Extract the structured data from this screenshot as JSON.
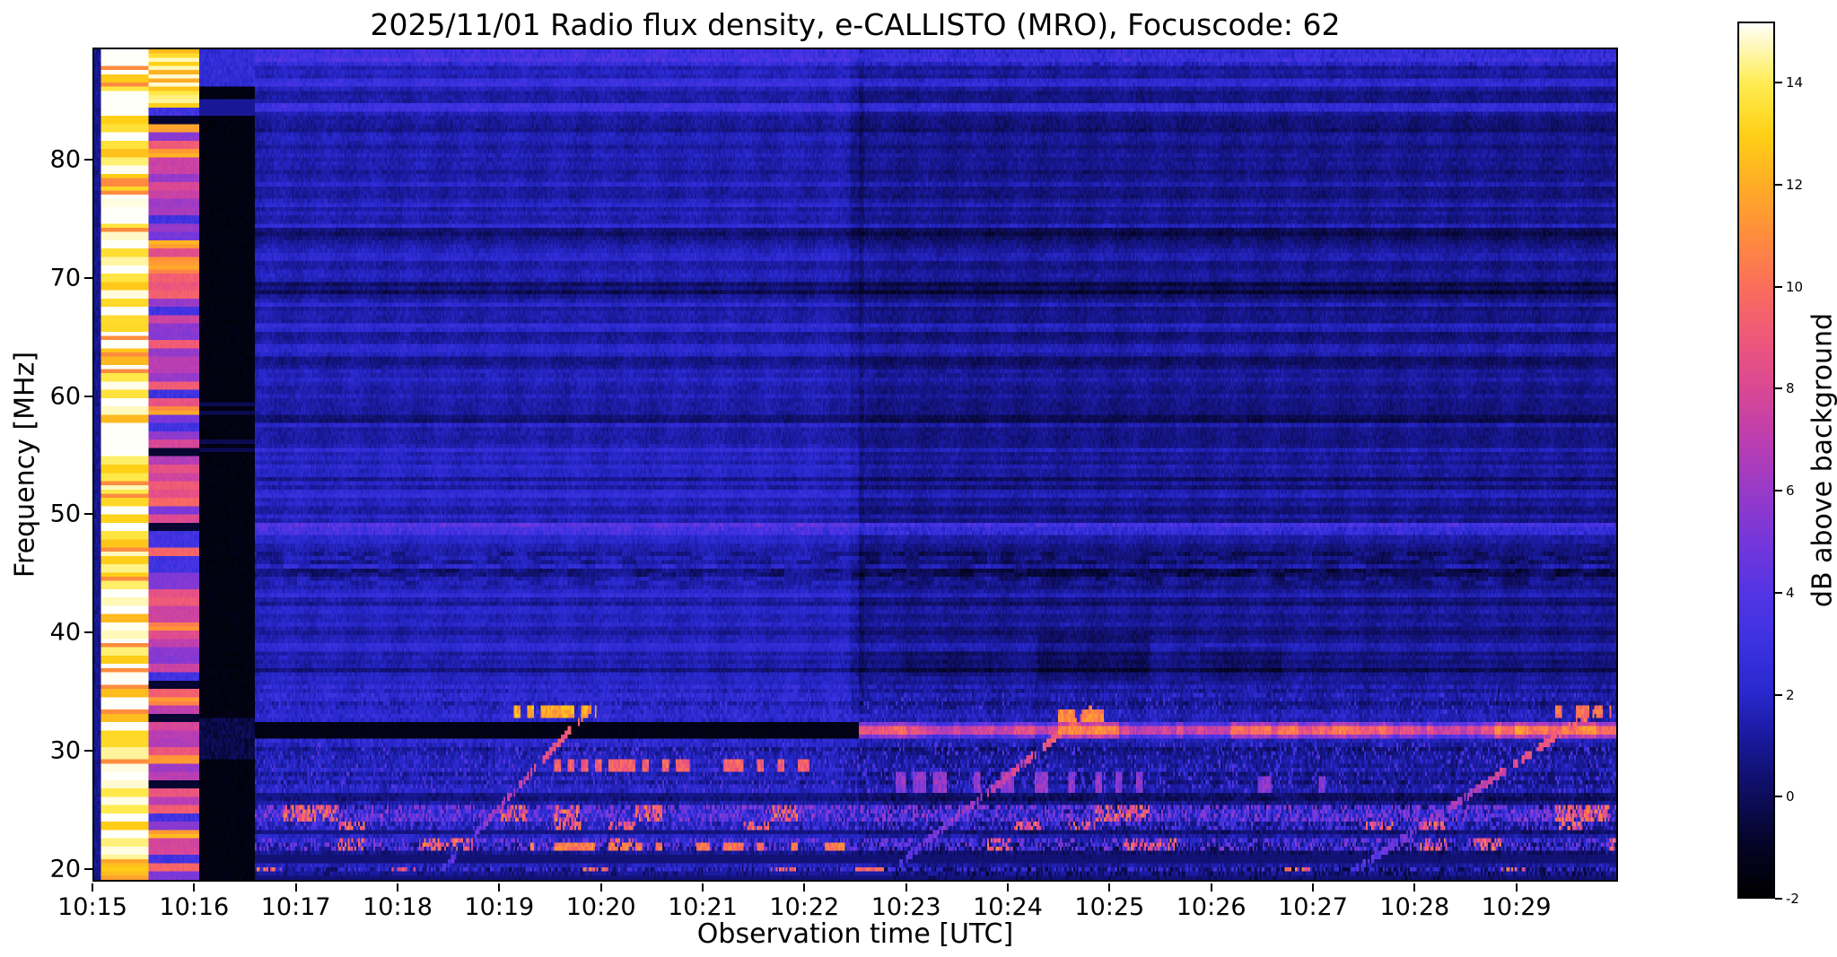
{
  "figure": {
    "background": "#ffffff"
  },
  "chart_data": {
    "type": "heatmap",
    "title": "2025/11/01  Radio flux density, e-CALLISTO (MRO), Focuscode: 62",
    "xlabel": "Observation time [UTC]",
    "ylabel": "Frequency [MHz]",
    "x_ticks": [
      "10:15",
      "10:16",
      "10:17",
      "10:18",
      "10:19",
      "10:20",
      "10:21",
      "10:22",
      "10:23",
      "10:24",
      "10:25",
      "10:26",
      "10:27",
      "10:28",
      "10:29"
    ],
    "x_range_minutes": [
      0,
      15
    ],
    "y_ticks": [
      20,
      30,
      40,
      50,
      60,
      70,
      80
    ],
    "y_range_mhz": [
      18.9,
      89.5
    ],
    "colorbar": {
      "label": "dB above background",
      "ticks": [
        -2,
        0,
        2,
        4,
        6,
        8,
        10,
        12,
        14
      ],
      "range": [
        -2,
        15.2
      ]
    },
    "grid": false,
    "legend": null,
    "description": "e-CALLISTO (MRO) dynamic radio spectrum 10:15-10:30 UTC, 19-89 MHz. Bright white/yellow calibration column at 10:15-10:15.5, pink column to 10:16, black column to 10:16.6. Dark blue striped background, step to darker background at ~10:22.6. Black horizontal band at ~31.5 MHz on left half becomes bright pink/orange line after 10:22.6. Strong RFI speckle bands at 18-25 MHz and 26-31 MHz. Three rising ionosonde-like drifting traces up to ~33.5 MHz near 10:19, 10:24 and 10:29. Brighter blue rows near 49 MHz and at the top edge (87-89 MHz).",
    "render": {
      "grid": {
        "nt": 900,
        "nf": 200
      },
      "step_time": 7.53,
      "base_left": 1.55,
      "base_right": 0.95,
      "bands": {
        "dark_edge_t": 0.07,
        "cal_t": [
          0.07,
          0.53
        ],
        "pink_t": [
          0.53,
          1.03
        ],
        "black_t": [
          1.03,
          1.58
        ]
      },
      "bright_rows": [
        {
          "f": [
            88.2,
            89.5
          ],
          "add": 1.4
        },
        {
          "f": [
            86.2,
            86.9
          ],
          "add": 0.7
        },
        {
          "f": [
            84.2,
            85.0
          ],
          "add": 0.8
        },
        {
          "f": [
            48.3,
            49.3
          ],
          "add": 1.6
        }
      ],
      "dark_rows": [
        82.9,
        74.0,
        69.5,
        68.7,
        63.2,
        58.2,
        53.0,
        44.9,
        36.9
      ],
      "rfi_line": {
        "f": [
          31.05,
          32.35
        ],
        "core": [
          31.3,
          32.05
        ],
        "blobs": [
          [
            7.53,
            8.2,
            1.5
          ],
          [
            9.5,
            10.1,
            3.0
          ],
          [
            11.2,
            12.8,
            1.8
          ],
          [
            13.8,
            15.0,
            2.6
          ]
        ]
      },
      "rfi_bands": [
        {
          "f": [
            23.9,
            25.4
          ],
          "density": 0.8,
          "amp": 5.2,
          "hot": true
        },
        {
          "f": [
            23.2,
            23.9
          ],
          "density": 0.5,
          "amp": 3.5,
          "hot": true
        },
        {
          "f": [
            21.2,
            22.6
          ],
          "density": 0.6,
          "amp": 4.5,
          "hot": true
        },
        {
          "f": [
            19.3,
            20.1
          ],
          "density": 0.5,
          "amp": 2.6,
          "hot": true
        },
        {
          "f": [
            18.9,
            19.6
          ],
          "density": 0.45,
          "amp": 2.4,
          "hot": false
        },
        {
          "f": [
            26.2,
            30.7
          ],
          "density": 0.2,
          "amp": 3.2,
          "hot": false
        },
        {
          "f": [
            33.0,
            34.9
          ],
          "density": 0.1,
          "amp": 2.6,
          "hot": false
        }
      ],
      "hot_segments": [
        {
          "t": [
            4.5,
            7.05
          ],
          "f": [
            28.2,
            29.2
          ],
          "gate": 0.45,
          "v": 8.2
        },
        {
          "t": [
            4.3,
            7.4
          ],
          "f": [
            21.3,
            22.2
          ],
          "gate": 0.5,
          "v": 9.2
        },
        {
          "t": [
            7.9,
            10.6
          ],
          "f": [
            26.3,
            28.2
          ],
          "gate": 0.68,
          "v": 4.5
        },
        {
          "t": [
            11.4,
            12.6
          ],
          "f": [
            26.3,
            27.6
          ],
          "gate": 0.7,
          "v": 4.2
        },
        {
          "t": [
            4.1,
            4.95
          ],
          "f": [
            32.8,
            33.9
          ],
          "gate": 0.4,
          "v": 10.8
        },
        {
          "t": [
            9.5,
            9.95
          ],
          "f": [
            32.4,
            33.5
          ],
          "gate": 0.45,
          "v": 9.6
        },
        {
          "t": [
            14.4,
            14.95
          ],
          "f": [
            32.6,
            33.6
          ],
          "gate": 0.5,
          "v": 9.0
        },
        {
          "t": [
            7.5,
            7.78
          ],
          "f": [
            18.9,
            20.0
          ],
          "gate": 0.35,
          "v": 8.5
        }
      ],
      "dark_blocks": [
        {
          "t": [
            9.3,
            10.4
          ],
          "f": [
            36.0,
            39.6
          ],
          "d": 0.6
        },
        {
          "t": [
            8.0,
            8.85
          ],
          "f": [
            36.2,
            38.2
          ],
          "d": 0.4
        },
        {
          "t": [
            10.9,
            11.7
          ],
          "f": [
            36.0,
            38.6
          ],
          "d": 0.45
        }
      ],
      "dark_gaps": [
        [
          20.15,
          21.1,
          0.45
        ],
        [
          22.65,
          23.15,
          0.7
        ],
        [
          25.45,
          26.15,
          0.9
        ]
      ],
      "sweeps": [
        {
          "t0": 3.35,
          "t1": 4.9,
          "f0": 19.0,
          "f1": 33.6
        },
        {
          "t0": 7.75,
          "t1": 9.85,
          "f0": 19.0,
          "f1": 33.6
        },
        {
          "t0": 12.3,
          "t1": 14.85,
          "f0": 19.0,
          "f1": 33.6
        }
      ],
      "colormap": [
        [
          -2.0,
          0,
          0,
          0
        ],
        [
          -1.0,
          4,
          4,
          38
        ],
        [
          0.0,
          13,
          13,
          92
        ],
        [
          1.0,
          24,
          24,
          150
        ],
        [
          2.0,
          40,
          40,
          205
        ],
        [
          3.0,
          60,
          50,
          224
        ],
        [
          4.0,
          84,
          52,
          228
        ],
        [
          5.0,
          118,
          55,
          219
        ],
        [
          6.0,
          152,
          58,
          200
        ],
        [
          7.0,
          188,
          62,
          176
        ],
        [
          8.0,
          218,
          72,
          148
        ],
        [
          9.0,
          238,
          88,
          122
        ],
        [
          10.0,
          250,
          110,
          92
        ],
        [
          11.0,
          255,
          140,
          62
        ],
        [
          12.0,
          255,
          172,
          38
        ],
        [
          13.0,
          255,
          208,
          22
        ],
        [
          14.0,
          255,
          236,
          80
        ],
        [
          15.2,
          255,
          255,
          250
        ]
      ]
    }
  }
}
